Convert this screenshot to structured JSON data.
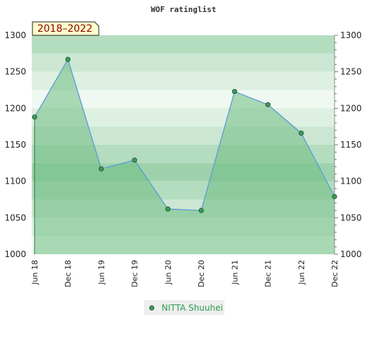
{
  "chart_data": {
    "type": "area",
    "title": "WOF ratinglist",
    "period_label": "2018–2022",
    "categories": [
      "Jun 18",
      "Dec 18",
      "Jun 19",
      "Dec 19",
      "Jun 20",
      "Dec 20",
      "Jun 21",
      "Dec 21",
      "Jun 22",
      "Dec 22"
    ],
    "series": [
      {
        "name": "NITTA Shuuhei",
        "values": [
          1188,
          1267,
          1117,
          1129,
          1062,
          1060,
          1223,
          1205,
          1166,
          1079
        ]
      }
    ],
    "ylim": [
      1000,
      1300
    ],
    "yticks": [
      1000,
      1050,
      1100,
      1150,
      1200,
      1250,
      1300
    ],
    "grid": true,
    "legend_position": "bottom-center",
    "colors": {
      "line": "#5b9bd5",
      "marker": "#3d9a5c",
      "fill": "#6dbd82",
      "band_dark": "#b4dcbf",
      "band_light": "#f0f8f2",
      "badge_bg": "#ffffcc"
    }
  }
}
